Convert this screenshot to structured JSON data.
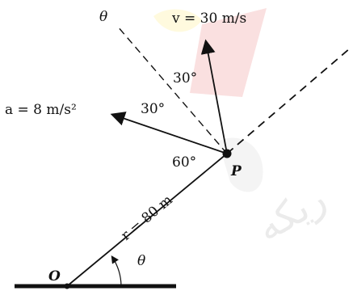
{
  "diagram": {
    "theta_top": "θ",
    "v_label": "v = 30 m/s",
    "a_label": "a = 8 m/s²",
    "angle_a": "30°",
    "angle_b": "30°",
    "angle_c": "60°",
    "point_label": "P",
    "radius_label": "r = 80 m",
    "origin_label": "O",
    "theta_bottom": "θ",
    "watermark_text": "ريکه"
  }
}
